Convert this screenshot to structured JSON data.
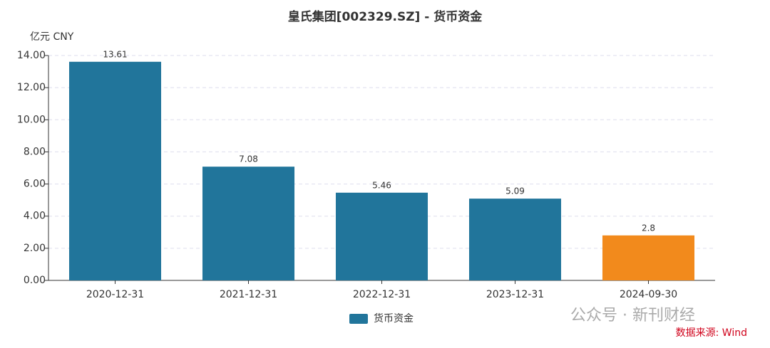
{
  "chart_data": {
    "type": "bar",
    "title": "皇氏集团[002329.SZ] - 货币资金",
    "y_unit": "亿元  CNY",
    "categories": [
      "2020-12-31",
      "2021-12-31",
      "2022-12-31",
      "2023-12-31",
      "2024-09-30"
    ],
    "series": [
      {
        "name": "货币资金",
        "color": "#21759b",
        "values": [
          13.61,
          7.08,
          5.46,
          5.09,
          2.8
        ],
        "colors": [
          "#21759b",
          "#21759b",
          "#21759b",
          "#21759b",
          "#f28a1c"
        ]
      }
    ],
    "ylim": [
      0,
      14
    ],
    "yticks": [
      {
        "value": 0,
        "label": "0.00"
      },
      {
        "value": 2,
        "label": "2.00"
      },
      {
        "value": 4,
        "label": "4.00"
      },
      {
        "value": 6,
        "label": "6.00"
      },
      {
        "value": 8,
        "label": "8.00"
      },
      {
        "value": 10,
        "label": "10.00"
      },
      {
        "value": 12,
        "label": "12.00"
      },
      {
        "value": 14,
        "label": "14.00"
      }
    ],
    "grid": true,
    "watermark": "公众号 · 新刊财经",
    "source": "数据来源: Wind"
  }
}
